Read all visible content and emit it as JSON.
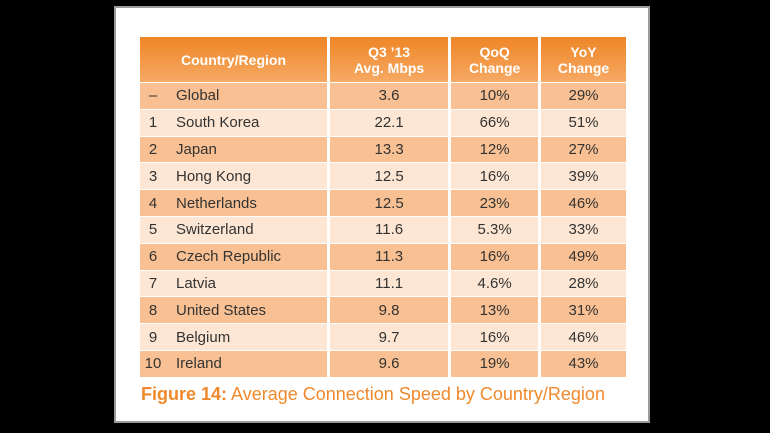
{
  "header": {
    "country": "Country/Region",
    "avg": [
      "Q3 ’13",
      "Avg. Mbps"
    ],
    "qoq": [
      "QoQ",
      "Change"
    ],
    "yoy": [
      "YoY",
      "Change"
    ]
  },
  "rows": [
    {
      "rank": "–",
      "country": "Global",
      "avg": "3.6",
      "qoq": "10%",
      "yoy": "29%"
    },
    {
      "rank": "1",
      "country": "South Korea",
      "avg": "22.1",
      "qoq": "66%",
      "yoy": "51%"
    },
    {
      "rank": "2",
      "country": "Japan",
      "avg": "13.3",
      "qoq": "12%",
      "yoy": "27%"
    },
    {
      "rank": "3",
      "country": "Hong Kong",
      "avg": "12.5",
      "qoq": "16%",
      "yoy": "39%"
    },
    {
      "rank": "4",
      "country": "Netherlands",
      "avg": "12.5",
      "qoq": "23%",
      "yoy": "46%"
    },
    {
      "rank": "5",
      "country": "Switzerland",
      "avg": "11.6",
      "qoq": "5.3%",
      "yoy": "33%"
    },
    {
      "rank": "6",
      "country": "Czech Republic",
      "avg": "11.3",
      "qoq": "16%",
      "yoy": "49%"
    },
    {
      "rank": "7",
      "country": "Latvia",
      "avg": "11.1",
      "qoq": "4.6%",
      "yoy": "28%"
    },
    {
      "rank": "8",
      "country": "United States",
      "avg": "9.8",
      "qoq": "13%",
      "yoy": "31%"
    },
    {
      "rank": "9",
      "country": "Belgium",
      "avg": "9.7",
      "qoq": "16%",
      "yoy": "46%"
    },
    {
      "rank": "10",
      "country": "Ireland",
      "avg": "9.6",
      "qoq": "19%",
      "yoy": "43%"
    }
  ],
  "caption": {
    "label": "Figure 14:",
    "text": " Average Connection Speed by Country/Region"
  }
}
